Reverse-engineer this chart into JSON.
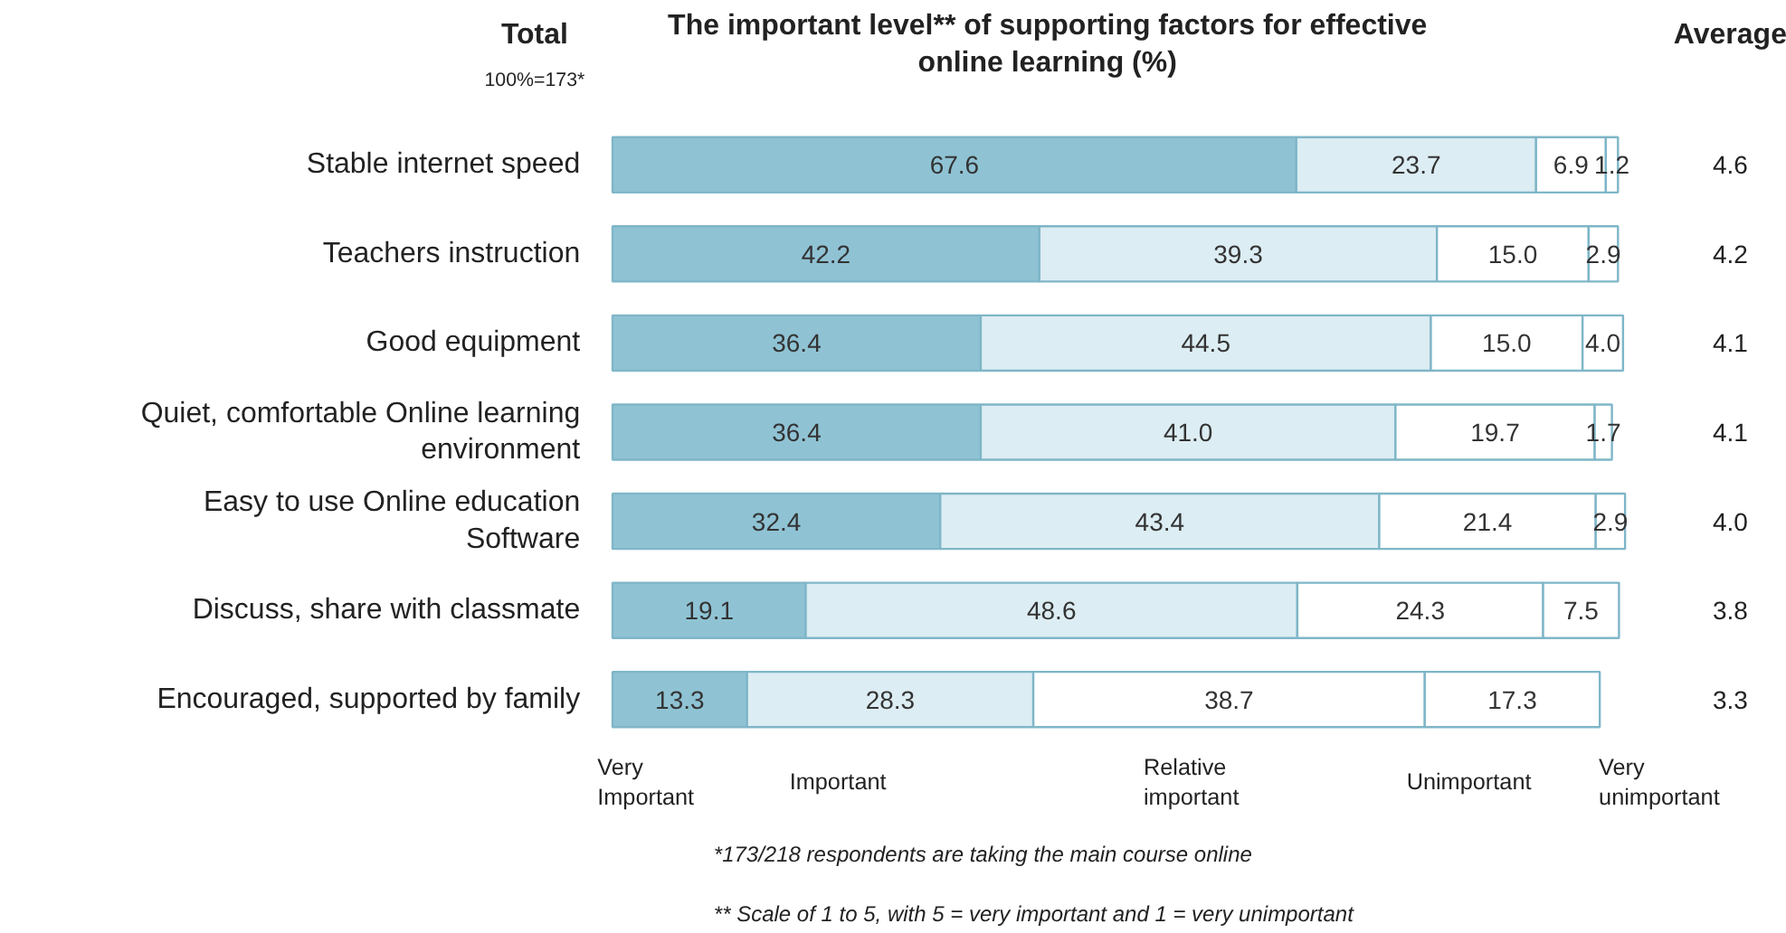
{
  "chart_data": {
    "type": "bar",
    "orientation": "horizontal",
    "stacked": true,
    "title": "The important level** of supporting factors for effective online learning (%)",
    "categories": [
      "Stable internet speed",
      "Teachers instruction",
      "Good equipment",
      "Quiet, comfortable Online learning environment",
      "Easy to use Online education Software",
      "Discuss, share with classmate",
      "Encouraged, supported by family"
    ],
    "series": [
      {
        "color": "#8fc3d4",
        "values": [
          67.6,
          42.2,
          36.4,
          36.4,
          32.4,
          19.1,
          13.3
        ],
        "value_labels": [
          "67.6",
          "42.2",
          "36.4",
          "36.4",
          "32.4",
          "19.1",
          "13.3"
        ]
      },
      {
        "color": "#dcedf3",
        "values": [
          23.7,
          39.3,
          44.5,
          41.0,
          43.4,
          48.6,
          28.3
        ],
        "value_labels": [
          "23.7",
          "39.3",
          "44.5",
          "41.0",
          "43.4",
          "48.6",
          "28.3"
        ]
      },
      {
        "color": "#ffffff",
        "values": [
          6.9,
          15.0,
          15.0,
          19.7,
          21.4,
          24.3,
          38.7
        ],
        "value_labels": [
          "6.9",
          "15.0",
          "15.0",
          "19.7",
          "21.4",
          "24.3",
          "38.7"
        ]
      },
      {
        "color": "#ffffff",
        "values": [
          1.2,
          2.9,
          4.0,
          1.7,
          2.9,
          7.5,
          17.3
        ],
        "value_labels": [
          "1.2",
          "2.9",
          "4.0",
          "1.7",
          "2.9",
          "7.5",
          "17.3"
        ]
      }
    ],
    "xlim": [
      0,
      100
    ],
    "grid": false,
    "tick_labels": "y",
    "annotations": [
      "Total",
      "100%=173*",
      "Average",
      "4.6",
      "4.2",
      "4.1",
      "4.1",
      "4.0",
      "3.8",
      "3.3",
      "Very Important",
      "Important",
      "Relative important",
      "Unimportant",
      "Very unimportant",
      "*173/218 respondents are taking the main course online",
      "** Scale of 1 to 5, with 5 = very important and 1 = very unimportant"
    ]
  }
}
